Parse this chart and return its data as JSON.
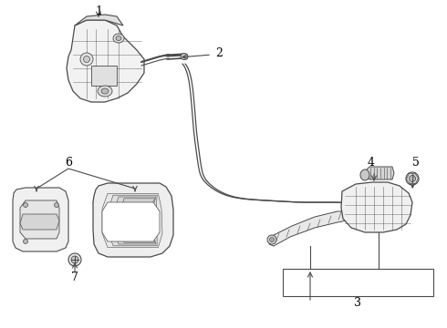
{
  "bg_color": "#ffffff",
  "line_color": "#4a4a4a",
  "label_color": "#000000",
  "fig_w": 4.9,
  "fig_h": 3.6,
  "dpi": 100
}
